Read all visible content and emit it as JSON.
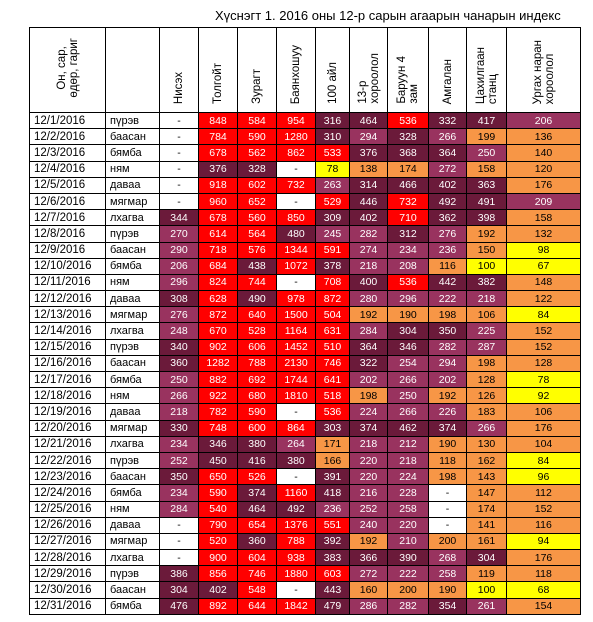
{
  "title": "Хүснэгт 1. 2016 оны 12-р сарын агаарын чанарын индекс",
  "colors": {
    "yellow": "#ffff00",
    "orange": "#f79646",
    "red": "#ff0000",
    "purple": "#99335f",
    "maroon": "#6b1a3a",
    "white": "#ffffff"
  },
  "header": {
    "date_col": "Он, сар,\nөдөр, гариг",
    "stations": [
      "Нисэх",
      "Толгойт",
      "Зурагт",
      "Баянхошуу",
      "100 айл",
      "13-р\nхороолол",
      "Баруун 4\nзам",
      "Амгалан",
      "Цахилгаан\nстанц",
      "Ургах наран\nхороолол"
    ]
  },
  "rows": [
    {
      "date": "12/1/2016",
      "day": "пүрэв",
      "values": [
        "-",
        "848",
        "584",
        "954",
        "316",
        "464",
        "536",
        "332",
        "417",
        "206"
      ]
    },
    {
      "date": "12/2/2016",
      "day": "баасан",
      "values": [
        "-",
        "784",
        "590",
        "1280",
        "310",
        "294",
        "328",
        "266",
        "199",
        "136"
      ]
    },
    {
      "date": "12/3/2016",
      "day": "бямба",
      "values": [
        "-",
        "678",
        "562",
        "862",
        "533",
        "376",
        "368",
        "364",
        "250",
        "140"
      ]
    },
    {
      "date": "12/4/2016",
      "day": "ням",
      "values": [
        "-",
        "376",
        "328",
        "-",
        "78",
        "138",
        "174",
        "272",
        "158",
        "120"
      ]
    },
    {
      "date": "12/5/2016",
      "day": "даваа",
      "values": [
        "-",
        "918",
        "602",
        "732",
        "263",
        "314",
        "466",
        "402",
        "363",
        "176"
      ]
    },
    {
      "date": "12/6/2016",
      "day": "мягмар",
      "values": [
        "-",
        "960",
        "652",
        "-",
        "529",
        "446",
        "732",
        "492",
        "491",
        "209"
      ]
    },
    {
      "date": "12/7/2016",
      "day": "лхагва",
      "values": [
        "344",
        "678",
        "560",
        "850",
        "309",
        "402",
        "710",
        "362",
        "398",
        "158"
      ]
    },
    {
      "date": "12/8/2016",
      "day": "пүрэв",
      "values": [
        "270",
        "614",
        "564",
        "480",
        "245",
        "282",
        "312",
        "276",
        "192",
        "132"
      ]
    },
    {
      "date": "12/9/2016",
      "day": "баасан",
      "values": [
        "290",
        "718",
        "576",
        "1344",
        "591",
        "274",
        "234",
        "236",
        "150",
        "98"
      ]
    },
    {
      "date": "12/10/2016",
      "day": "бямба",
      "values": [
        "206",
        "684",
        "438",
        "1072",
        "378",
        "218",
        "208",
        "116",
        "100",
        "67"
      ]
    },
    {
      "date": "12/11/2016",
      "day": "ням",
      "values": [
        "296",
        "824",
        "744",
        "-",
        "708",
        "400",
        "536",
        "442",
        "382",
        "148"
      ]
    },
    {
      "date": "12/12/2016",
      "day": "даваа",
      "values": [
        "308",
        "628",
        "490",
        "978",
        "872",
        "280",
        "296",
        "222",
        "218",
        "122"
      ]
    },
    {
      "date": "12/13/2016",
      "day": "мягмар",
      "values": [
        "276",
        "872",
        "640",
        "1500",
        "504",
        "192",
        "190",
        "198",
        "106",
        "84"
      ]
    },
    {
      "date": "12/14/2016",
      "day": "лхагва",
      "values": [
        "248",
        "670",
        "528",
        "1164",
        "631",
        "284",
        "304",
        "350",
        "225",
        "152"
      ]
    },
    {
      "date": "12/15/2016",
      "day": "пүрэв",
      "values": [
        "340",
        "902",
        "606",
        "1452",
        "510",
        "364",
        "346",
        "282",
        "287",
        "152"
      ]
    },
    {
      "date": "12/16/2016",
      "day": "баасан",
      "values": [
        "360",
        "1282",
        "788",
        "2130",
        "746",
        "322",
        "254",
        "294",
        "198",
        "128"
      ]
    },
    {
      "date": "12/17/2016",
      "day": "бямба",
      "values": [
        "250",
        "882",
        "692",
        "1744",
        "641",
        "202",
        "266",
        "202",
        "128",
        "78"
      ]
    },
    {
      "date": "12/18/2016",
      "day": "ням",
      "values": [
        "266",
        "922",
        "680",
        "1810",
        "518",
        "198",
        "250",
        "192",
        "126",
        "92"
      ]
    },
    {
      "date": "12/19/2016",
      "day": "даваа",
      "values": [
        "218",
        "782",
        "590",
        "-",
        "536",
        "224",
        "266",
        "226",
        "183",
        "106"
      ]
    },
    {
      "date": "12/20/2016",
      "day": "мягмар",
      "values": [
        "330",
        "748",
        "600",
        "864",
        "303",
        "374",
        "462",
        "374",
        "266",
        "176"
      ]
    },
    {
      "date": "12/21/2016",
      "day": "лхагва",
      "values": [
        "234",
        "346",
        "380",
        "264",
        "171",
        "218",
        "212",
        "190",
        "130",
        "104"
      ]
    },
    {
      "date": "12/22/2016",
      "day": "пүрэв",
      "values": [
        "252",
        "450",
        "416",
        "380",
        "166",
        "220",
        "218",
        "118",
        "162",
        "84"
      ]
    },
    {
      "date": "12/23/2016",
      "day": "баасан",
      "values": [
        "350",
        "650",
        "526",
        "-",
        "391",
        "220",
        "224",
        "198",
        "143",
        "96"
      ]
    },
    {
      "date": "12/24/2016",
      "day": "бямба",
      "values": [
        "234",
        "590",
        "374",
        "1160",
        "418",
        "216",
        "228",
        "-",
        "147",
        "112"
      ]
    },
    {
      "date": "12/25/2016",
      "day": "ням",
      "values": [
        "284",
        "540",
        "464",
        "492",
        "236",
        "252",
        "258",
        "-",
        "174",
        "152"
      ]
    },
    {
      "date": "12/26/2016",
      "day": "даваа",
      "values": [
        "-",
        "790",
        "654",
        "1376",
        "551",
        "240",
        "220",
        "-",
        "141",
        "116"
      ]
    },
    {
      "date": "12/27/2016",
      "day": "мягмар",
      "values": [
        "-",
        "520",
        "360",
        "788",
        "392",
        "192",
        "210",
        "200",
        "161",
        "94"
      ]
    },
    {
      "date": "12/28/2016",
      "day": "лхагва",
      "values": [
        "-",
        "900",
        "604",
        "938",
        "383",
        "366",
        "390",
        "268",
        "304",
        "176"
      ]
    },
    {
      "date": "12/29/2016",
      "day": "пүрэв",
      "values": [
        "386",
        "856",
        "746",
        "1880",
        "603",
        "272",
        "222",
        "258",
        "119",
        "118"
      ]
    },
    {
      "date": "12/30/2016",
      "day": "баасан",
      "values": [
        "304",
        "402",
        "548",
        "-",
        "443",
        "160",
        "200",
        "190",
        "100",
        "68"
      ]
    },
    {
      "date": "12/31/2016",
      "day": "бямба",
      "values": [
        "476",
        "892",
        "644",
        "1842",
        "479",
        "286",
        "282",
        "354",
        "261",
        "154"
      ]
    }
  ]
}
